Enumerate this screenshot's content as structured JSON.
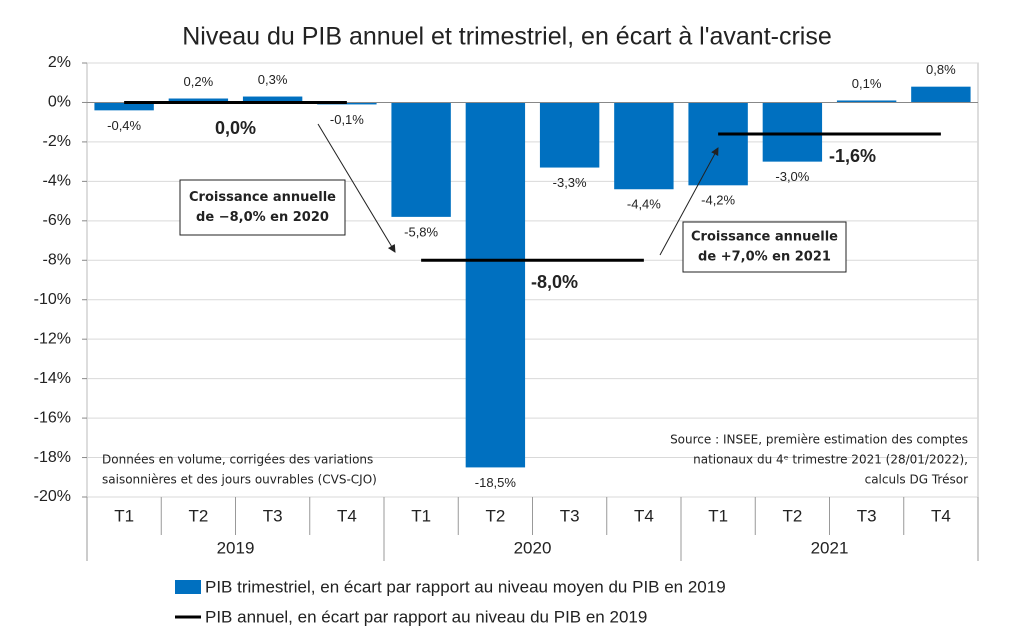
{
  "chart_data": {
    "type": "bar",
    "title": "Niveau du PIB annuel et trimestriel, en écart à l'avant-crise",
    "categories": [
      "T1",
      "T2",
      "T3",
      "T4",
      "T1",
      "T2",
      "T3",
      "T4",
      "T1",
      "T2",
      "T3",
      "T4"
    ],
    "years": [
      "2019",
      "2020",
      "2021"
    ],
    "series": [
      {
        "name": "PIB trimestriel, en écart par rapport au niveau moyen du PIB en 2019",
        "color": "#0070c0",
        "values": [
          -0.4,
          0.2,
          0.3,
          -0.1,
          -5.8,
          -18.5,
          -3.3,
          -4.4,
          -4.2,
          -3.0,
          0.1,
          0.8
        ],
        "value_labels": [
          "-0,4%",
          "0,2%",
          "0,3%",
          "-0,1%",
          "-5,8%",
          "-18,5%",
          "-3,3%",
          "-4,4%",
          "-4,2%",
          "-3,0%",
          "0,1%",
          "0,8%"
        ]
      }
    ],
    "annual_series": {
      "name": "PIB annuel, en écart par rapport au niveau du PIB en 2019",
      "color": "#000000",
      "values": [
        0.0,
        -8.0,
        -1.6
      ],
      "value_labels": [
        "0,0%",
        "-8,0%",
        "-1,6%"
      ]
    },
    "ylim": [
      -20,
      2
    ],
    "yticks": [
      {
        "value": -20,
        "label": "-20%"
      },
      {
        "value": -18,
        "label": "-18%"
      },
      {
        "value": -16,
        "label": "-16%"
      },
      {
        "value": -14,
        "label": "-14%"
      },
      {
        "value": -12,
        "label": "-12%"
      },
      {
        "value": -10,
        "label": "-10%"
      },
      {
        "value": -8,
        "label": "-8%"
      },
      {
        "value": -6,
        "label": "-6%"
      },
      {
        "value": -4,
        "label": "-4%"
      },
      {
        "value": -2,
        "label": "-2%"
      },
      {
        "value": 0,
        "label": "0%"
      },
      {
        "value": 2,
        "label": "2%"
      }
    ],
    "grid": true,
    "annotations": [
      {
        "lines": [
          "Croissance annuelle",
          "de −8,0% en 2020"
        ]
      },
      {
        "lines": [
          "Croissance annuelle",
          "de +7,0% en 2021"
        ]
      }
    ],
    "note": [
      "Données en volume, corrigées des variations",
      "saisonnières et des jours ouvrables (CVS-CJO)"
    ],
    "source": [
      "Source : INSEE, première estimation des comptes",
      "nationaux du 4ᵉ trimestre 2021 (28/01/2022),",
      "calculs DG Trésor"
    ]
  }
}
